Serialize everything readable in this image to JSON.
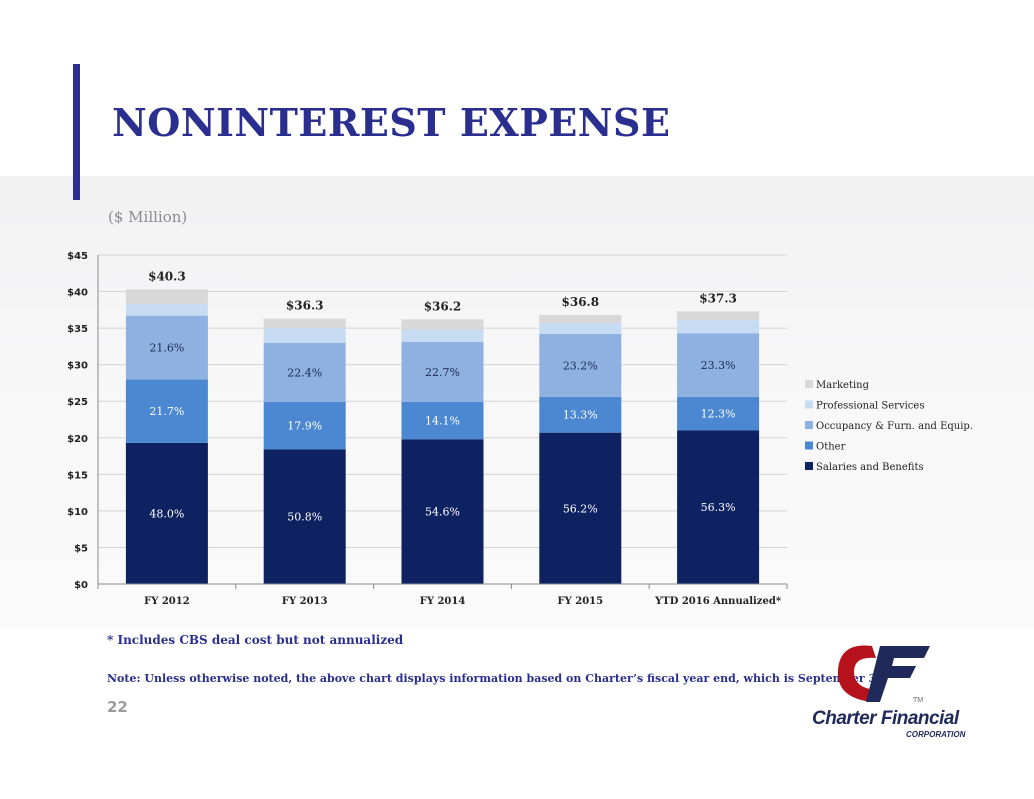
{
  "slide": {
    "title": "NONINTEREST EXPENSE",
    "units": "($ Million)",
    "footnote": "* Includes CBS deal cost but not annualized",
    "note": "Note:  Unless otherwise noted, the above chart displays information based on Charter’s fiscal year end, which is September 30.",
    "page_number": "22",
    "colors": {
      "title": "#2a2f8f",
      "band": "#f3f3f4"
    }
  },
  "logo": {
    "name": "Charter Financial",
    "sub": "CORPORATION",
    "tm": "TM",
    "colors": {
      "red": "#b5121b",
      "navy": "#1f2a5a"
    }
  },
  "chart_data": {
    "type": "bar",
    "stacked": true,
    "categories": [
      "FY 2012",
      "FY 2013",
      "FY 2014",
      "FY 2015",
      "YTD 2016 Annualized*"
    ],
    "ylim": [
      0,
      45
    ],
    "yticks": [
      0,
      5,
      10,
      15,
      20,
      25,
      30,
      35,
      40,
      45
    ],
    "ytick_labels": [
      "$0",
      "$5",
      "$10",
      "$15",
      "$20",
      "$25",
      "$30",
      "$35",
      "$40",
      "$45"
    ],
    "grid": true,
    "legend_position": "right",
    "totals": [
      40.3,
      36.3,
      36.2,
      36.8,
      37.3
    ],
    "total_labels": [
      "$40.3",
      "$36.3",
      "$36.2",
      "$36.8",
      "$37.3"
    ],
    "series": [
      {
        "name": "Salaries and Benefits",
        "color": "#0e2262",
        "values": [
          19.3,
          18.4,
          19.8,
          20.7,
          21.0
        ],
        "labels": [
          "48.0%",
          "50.8%",
          "54.6%",
          "56.2%",
          "56.3%"
        ],
        "label_color": "#ffffff"
      },
      {
        "name": "Other",
        "color": "#4c87d2",
        "values": [
          8.7,
          6.5,
          5.1,
          4.9,
          4.6
        ],
        "labels": [
          "21.7%",
          "17.9%",
          "14.1%",
          "13.3%",
          "12.3%"
        ],
        "label_color": "#ffffff"
      },
      {
        "name": "Occupancy & Furn. and Equip.",
        "color": "#8eb1e2",
        "values": [
          8.7,
          8.1,
          8.2,
          8.6,
          8.7
        ],
        "labels": [
          "21.6%",
          "22.4%",
          "22.7%",
          "23.2%",
          "23.3%"
        ],
        "label_color": "#1f2a5a"
      },
      {
        "name": "Professional Services",
        "color": "#c7dbf2",
        "values": [
          1.6,
          2.0,
          1.7,
          1.5,
          1.8
        ],
        "labels": [
          "",
          "",
          "",
          "",
          ""
        ],
        "label_color": "#1f2a5a"
      },
      {
        "name": "Marketing",
        "color": "#d8d8d8",
        "values": [
          2.0,
          1.3,
          1.4,
          1.1,
          1.2
        ],
        "labels": [
          "",
          "",
          "",
          "",
          ""
        ],
        "label_color": "#1f2a5a"
      }
    ],
    "legend_order": [
      "Marketing",
      "Professional Services",
      "Occupancy & Furn. and Equip.",
      "Other",
      "Salaries and Benefits"
    ]
  }
}
